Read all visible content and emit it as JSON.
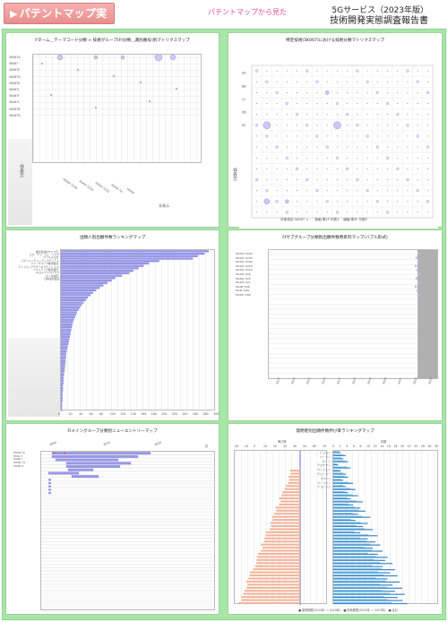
{
  "header": {
    "badge": "パテントマップ実例",
    "subtitle": "パテントマップから見た",
    "title_line1": "5Gサービス（2023年版）",
    "title_line2": "技術開発実態調査報告書"
  },
  "panels": {
    "p1": {
      "title": "Fターム＿テーマコード分類 × 技術グループ(FI分類＿識別番号)別マトリクスマップ",
      "side_label": "非表示",
      "bottom_label": "非表示",
      "rows": [
        "5K067A",
        "5K067 ",
        "5K067E",
        "5K067H",
        "5K067K",
        "5K067J",
        "5K067F",
        "5K067L",
        "5K067B",
        "5K067D"
      ],
      "xticks": [
        "H04W 72/04",
        "H04W 72/54",
        "H04W 72/52",
        "H04W 72/...",
        "H04W"
      ]
    },
    "p2": {
      "title": "特定技術(5K067)における技術分類マトリクスマップ",
      "side_label": "非表示",
      "rows": [
        "AA",
        "BB",
        "CC",
        "DD",
        "EE"
      ],
      "caption": "対象項目:5K067 ×　　縦軸:第2F 桁数2　 横軸:第3F 桁数2"
    },
    "p3": {
      "title": "出願人別出願件数ランキングマップ",
      "xticks": [
        "0",
        "20",
        "40",
        "60",
        "80",
        "100",
        "120",
        "140",
        "160",
        "180",
        "200",
        "220",
        "240",
        "260",
        "280",
        "300"
      ],
      "names": [
        "株式会社NTTドコモ",
        "エヌ・ティ・ティ・ドコモ",
        "クアルコム社",
        "パナソニック インテレクチュアル",
        "ソニーグループ株式会社",
        "テレフォンアクチーボラゲット エル",
        "ソフトバンク株式会社",
        "LGエレクトロニクス",
        "ホンダ技研",
        "日本電信電話"
      ],
      "values": [
        286,
        278,
        265,
        255,
        190,
        170,
        160,
        150,
        140,
        132,
        118,
        105,
        98,
        90,
        82,
        75,
        68,
        62,
        57,
        52,
        48,
        44,
        40,
        37,
        34,
        31,
        29,
        27,
        25,
        23,
        22,
        21,
        20,
        19,
        18,
        17,
        16,
        15,
        14,
        13,
        12,
        11,
        10,
        10,
        9,
        9,
        8,
        8,
        7,
        7,
        6,
        6,
        5,
        5,
        5,
        4,
        4,
        4,
        3,
        3,
        3,
        3,
        2,
        2,
        2,
        2
      ]
    },
    "p4": {
      "title": "FIサブグループ分類別出願件数時系列マップ(バブル形式)",
      "rows": [
        "H04W 72/04",
        "H04W 72/23",
        "H04W 72/52",
        "H04W 72/54",
        "H04W 72/12",
        "H04W 72/0",
        "H04W 72/5",
        "H04W 72/1",
        "H04B 7/06",
        "H04L 5/00",
        "H04W 7/06"
      ],
      "xticks": [
        "2013",
        "2014",
        "2015",
        "2016",
        "2017",
        "2018",
        "2019",
        "2020",
        "2021",
        "2022",
        "2023"
      ]
    },
    "p5": {
      "title": "FIメイングループ分類別ニューエントリーマップ",
      "col_labels": [
        "2000",
        "2010",
        "2020",
        "件"
      ],
      "rows": [
        "H04W 72",
        "H04L 5",
        "H04B 7",
        "H04W 74",
        "H04W 4"
      ]
    },
    "p6": {
      "title": "発明者別出願件数伸び率ランキングマップ",
      "left_label": "伸び率",
      "right_label": "件数",
      "left_ticks": [
        "-20",
        "-10",
        "0",
        "10",
        "20",
        "30",
        "40",
        "50",
        "60",
        "70"
      ],
      "right_ticks": [
        "0",
        "2",
        "4",
        "6",
        "8",
        "10",
        "12",
        "14",
        "16",
        "18",
        "20",
        "22",
        "24",
        "26",
        "28",
        "30"
      ],
      "names": [
        "ヒ ジョン",
        "リー ジン",
        "ヤン ハ",
        "チョウ ヤン",
        "ワン フェイ",
        "チェン リー",
        "ウォンリ",
        "ワン ファン",
        "イ ヨンジェ"
      ],
      "legend": "■ 基準期間(2014年 〜 2019年)　■ 伸長期間(2020年 〜 2023年)　■ 合計",
      "bars": [
        3,
        5,
        4,
        6,
        2,
        7,
        3,
        5,
        6,
        4,
        8,
        5,
        9,
        6,
        10,
        7,
        12,
        8,
        11,
        13,
        10,
        15,
        9,
        14,
        12,
        16,
        11,
        18,
        14,
        17,
        19,
        16,
        20,
        18,
        22,
        21,
        24,
        20,
        25,
        23,
        26,
        22,
        27,
        24,
        28,
        25,
        29,
        26,
        28,
        30
      ]
    },
    "colors": {
      "frame": "#a8e6a8",
      "badge": "#ee9a9a",
      "bubble": "#8a8ee0",
      "bar": "#9898e8",
      "redmark": "#e04040"
    }
  }
}
